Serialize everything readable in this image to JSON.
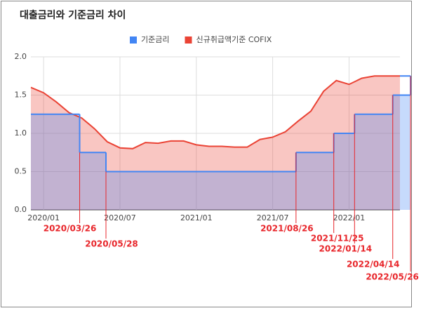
{
  "chart_data": {
    "type": "area",
    "title": "대출금리와 기준금리 차이",
    "series": [
      {
        "name": "기준금리",
        "color": "#4285f4",
        "step": true,
        "x": [
          "2019/12",
          "2020/03/26",
          "2020/05/28",
          "2021/08/26",
          "2021/11/25",
          "2022/01/14",
          "2022/04/14",
          "2022/05/26"
        ],
        "values": [
          1.25,
          0.75,
          0.5,
          0.75,
          1.0,
          1.25,
          1.5,
          1.75
        ]
      },
      {
        "name": "신규취급액기준 COFIX",
        "color": "#ea4335",
        "x": [
          "2019/12",
          "2020/01",
          "2020/02",
          "2020/03",
          "2020/04",
          "2020/05",
          "2020/06",
          "2020/07",
          "2020/08",
          "2020/09",
          "2020/10",
          "2020/11",
          "2020/12",
          "2021/01",
          "2021/02",
          "2021/03",
          "2021/04",
          "2021/05",
          "2021/06",
          "2021/07",
          "2021/08",
          "2021/09",
          "2021/10",
          "2021/11",
          "2021/12",
          "2022/01",
          "2022/02",
          "2022/03",
          "2022/04",
          "2022/05"
        ],
        "values": [
          1.6,
          1.53,
          1.41,
          1.27,
          1.2,
          1.06,
          0.89,
          0.81,
          0.8,
          0.88,
          0.87,
          0.9,
          0.9,
          0.85,
          0.83,
          0.83,
          0.82,
          0.82,
          0.92,
          0.95,
          1.02,
          1.16,
          1.29,
          1.55,
          1.69,
          1.64,
          1.72,
          1.75,
          1.75,
          1.75
        ]
      }
    ],
    "xlim": [
      "2019/12",
      "2022/05"
    ],
    "xticks": [
      "2020/01",
      "2020/07",
      "2021/01",
      "2021/07",
      "2022/01"
    ],
    "ylim": [
      0,
      2
    ],
    "yticks": [
      {
        "value": 0,
        "label": "0.0"
      },
      {
        "value": 0.5,
        "label": "0.5"
      },
      {
        "value": 1,
        "label": "1.0"
      },
      {
        "value": 1.5,
        "label": "1.5"
      },
      {
        "value": 2,
        "label": "2.0"
      }
    ],
    "grid": true,
    "legend": "top",
    "annotation_color": "#e8262b"
  }
}
